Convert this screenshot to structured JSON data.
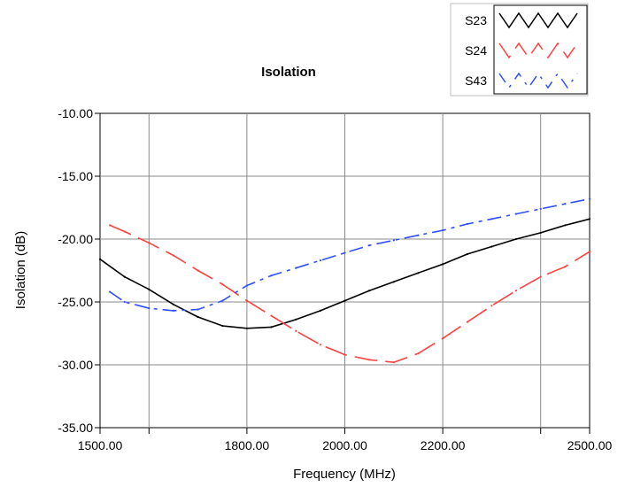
{
  "chart_data": {
    "type": "line",
    "title": "Isolation",
    "xlabel": "Frequency (MHz)",
    "ylabel": "Isolation (dB)",
    "xlim": [
      1500,
      2500
    ],
    "ylim": [
      -35,
      -10
    ],
    "x_ticks": [
      1500,
      1600,
      1800,
      2000,
      2200,
      2400,
      2500
    ],
    "x_tick_labels": [
      "1500.00",
      "",
      "1800.00",
      "2000.00",
      "2200.00",
      "",
      "2500.00"
    ],
    "y_ticks": [
      -35,
      -30,
      -25,
      -20,
      -15,
      -10
    ],
    "y_tick_labels": [
      "-35.00",
      "-30.00",
      "-25.00",
      "-20.00",
      "-15.00",
      "-10.00"
    ],
    "grid": true,
    "legend_position": "top-right",
    "series": [
      {
        "name": "S23",
        "color": "#000000",
        "dash": "solid",
        "x": [
          1500,
          1550,
          1600,
          1650,
          1700,
          1750,
          1800,
          1850,
          1900,
          1950,
          2000,
          2050,
          2100,
          2150,
          2200,
          2250,
          2300,
          2350,
          2400,
          2450,
          2500
        ],
        "y": [
          -21.6,
          -23.0,
          -24.0,
          -25.2,
          -26.2,
          -26.9,
          -27.1,
          -27.0,
          -26.4,
          -25.7,
          -24.9,
          -24.1,
          -23.4,
          -22.7,
          -22.0,
          -21.2,
          -20.6,
          -20.0,
          -19.5,
          -18.9,
          -18.4
        ]
      },
      {
        "name": "S24",
        "color": "#ff4040",
        "dash": "long",
        "x": [
          1520,
          1550,
          1600,
          1650,
          1700,
          1750,
          1800,
          1850,
          1900,
          1950,
          2000,
          2050,
          2100,
          2150,
          2200,
          2250,
          2300,
          2350,
          2400,
          2450,
          2500
        ],
        "y": [
          -18.9,
          -19.4,
          -20.3,
          -21.3,
          -22.5,
          -23.6,
          -24.9,
          -26.1,
          -27.3,
          -28.4,
          -29.2,
          -29.6,
          -29.8,
          -29.1,
          -27.9,
          -26.6,
          -25.3,
          -24.1,
          -23.0,
          -22.2,
          -21.0
        ]
      },
      {
        "name": "S43",
        "color": "#3050ff",
        "dash": "dashdot",
        "x": [
          1520,
          1550,
          1600,
          1650,
          1700,
          1750,
          1800,
          1850,
          1900,
          1950,
          2000,
          2050,
          2100,
          2150,
          2200,
          2250,
          2300,
          2350,
          2400,
          2450,
          2500
        ],
        "y": [
          -24.2,
          -25.0,
          -25.5,
          -25.7,
          -25.6,
          -24.9,
          -23.7,
          -22.9,
          -22.3,
          -21.7,
          -21.1,
          -20.5,
          -20.1,
          -19.7,
          -19.3,
          -18.8,
          -18.4,
          -18.0,
          -17.6,
          -17.2,
          -16.8
        ]
      }
    ]
  }
}
